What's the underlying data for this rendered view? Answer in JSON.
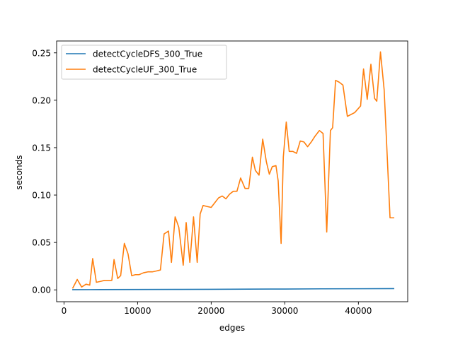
{
  "chart_data": {
    "type": "line",
    "title": "",
    "xlabel": "edges",
    "ylabel": "seconds",
    "xlim": [
      -1000,
      46700
    ],
    "ylim": [
      -0.0125,
      0.2625
    ],
    "xticks": [
      0,
      10000,
      20000,
      30000,
      40000
    ],
    "xtick_labels": [
      "0",
      "10000",
      "20000",
      "30000",
      "40000"
    ],
    "yticks": [
      0.0,
      0.05,
      0.1,
      0.15,
      0.2,
      0.25
    ],
    "ytick_labels": [
      "0.00",
      "0.05",
      "0.10",
      "0.15",
      "0.20",
      "0.25"
    ],
    "grid": false,
    "legend_position": "upper-left",
    "series": [
      {
        "name": "detectCycleDFS_300_True",
        "color": "#1f77b4",
        "x": [
          1200,
          5000,
          10000,
          15000,
          20000,
          25000,
          30000,
          35000,
          40000,
          44800
        ],
        "y": [
          0.0002,
          0.0003,
          0.0004,
          0.0005,
          0.0006,
          0.0008,
          0.0009,
          0.0011,
          0.0012,
          0.0013
        ]
      },
      {
        "name": "detectCycleUF_300_True",
        "color": "#ff7f0e",
        "x": [
          1200,
          1800,
          2400,
          3000,
          3500,
          3900,
          4400,
          5000,
          5500,
          6000,
          6500,
          6800,
          7300,
          7700,
          8200,
          8700,
          9200,
          9700,
          10200,
          10800,
          11400,
          12000,
          12600,
          13100,
          13600,
          14200,
          14600,
          15100,
          15600,
          16200,
          16600,
          17100,
          17600,
          18100,
          18500,
          18900,
          19400,
          20000,
          20400,
          21000,
          21500,
          22000,
          22500,
          23000,
          23500,
          24000,
          24600,
          25100,
          25600,
          26000,
          26500,
          27000,
          27500,
          27900,
          28300,
          28800,
          29100,
          29500,
          29800,
          30200,
          30600,
          31100,
          31600,
          32100,
          32600,
          33100,
          33600,
          34100,
          34700,
          35200,
          35700,
          36200,
          36500,
          36900,
          37400,
          37900,
          38500,
          39000,
          39500,
          40300,
          40700,
          41200,
          41700,
          42200,
          42500,
          43000,
          43500,
          43900,
          44300,
          44800
        ],
        "y": [
          0.002,
          0.011,
          0.003,
          0.006,
          0.005,
          0.033,
          0.008,
          0.009,
          0.01,
          0.01,
          0.01,
          0.032,
          0.012,
          0.015,
          0.049,
          0.038,
          0.015,
          0.016,
          0.016,
          0.018,
          0.019,
          0.019,
          0.02,
          0.021,
          0.059,
          0.062,
          0.029,
          0.077,
          0.066,
          0.026,
          0.071,
          0.029,
          0.077,
          0.029,
          0.08,
          0.089,
          0.088,
          0.087,
          0.091,
          0.097,
          0.099,
          0.096,
          0.101,
          0.104,
          0.104,
          0.118,
          0.107,
          0.107,
          0.14,
          0.126,
          0.121,
          0.159,
          0.135,
          0.122,
          0.13,
          0.131,
          0.115,
          0.049,
          0.14,
          0.177,
          0.146,
          0.146,
          0.144,
          0.157,
          0.156,
          0.151,
          0.156,
          0.162,
          0.168,
          0.165,
          0.061,
          0.168,
          0.171,
          0.221,
          0.219,
          0.216,
          0.183,
          0.185,
          0.187,
          0.194,
          0.233,
          0.201,
          0.238,
          0.202,
          0.199,
          0.251,
          0.211,
          0.144,
          0.076,
          0.076
        ]
      }
    ]
  }
}
